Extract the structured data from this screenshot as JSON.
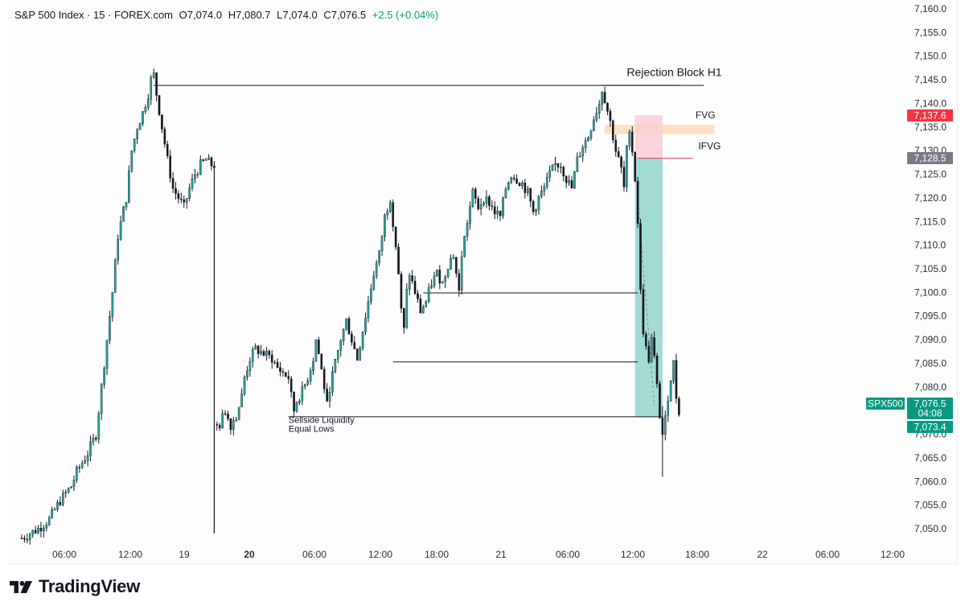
{
  "legend": {
    "symbol": "S&P 500 Index · 15 · FOREX.com",
    "open": "O7,074.0",
    "high": "H7,080.7",
    "low": "L7,074.0",
    "close": "C7,076.5",
    "change": "+2.5 (+0.04%)"
  },
  "branding": {
    "name": "TradingView",
    "icon": "tradingview-logo-icon"
  },
  "colors": {
    "up": "#26a69a",
    "down": "#131722",
    "teal_zone": "#92d4cc",
    "fvg": "#fbdcb8",
    "ifvg": "#f9cdd3",
    "tag_red": "#f23645",
    "tag_gray": "#787b86",
    "tag_green": "#089981"
  },
  "chart_data": {
    "type": "candlestick",
    "y_ticks": [
      "7,160.0",
      "7,155.0",
      "7,150.0",
      "7,145.0",
      "7,140.0",
      "7,135.0",
      "7,130.0",
      "7,125.0",
      "7,120.0",
      "7,115.0",
      "7,110.0",
      "7,105.0",
      "7,100.0",
      "7,095.0",
      "7,090.0",
      "7,085.0",
      "7,080.0",
      "7,075.0",
      "7,070.0",
      "7,065.0",
      "7,060.0",
      "7,055.0",
      "7,050.0"
    ],
    "ylim": [
      7046,
      7161
    ],
    "x_ticks": [
      {
        "label": "06:00",
        "bold": false
      },
      {
        "label": "12:00",
        "bold": false
      },
      {
        "label": "19",
        "bold": false
      },
      {
        "label": "20",
        "bold": true
      },
      {
        "label": "06:00",
        "bold": false
      },
      {
        "label": "12:00",
        "bold": false
      },
      {
        "label": "18:00",
        "bold": false
      },
      {
        "label": "21",
        "bold": false
      },
      {
        "label": "06:00",
        "bold": false
      },
      {
        "label": "12:00",
        "bold": false
      },
      {
        "label": "18:00",
        "bold": false
      },
      {
        "label": "22",
        "bold": false
      },
      {
        "label": "06:00",
        "bold": false
      },
      {
        "label": "12:00",
        "bold": false
      }
    ],
    "price_path": [
      [
        0,
        7048
      ],
      [
        6,
        7050
      ],
      [
        10,
        7052
      ],
      [
        14,
        7056
      ],
      [
        18,
        7059
      ],
      [
        20,
        7062
      ],
      [
        24,
        7066
      ],
      [
        27,
        7070
      ],
      [
        29,
        7080
      ],
      [
        31,
        7090
      ],
      [
        33,
        7100
      ],
      [
        35,
        7112
      ],
      [
        38,
        7120
      ],
      [
        40,
        7130
      ],
      [
        42,
        7135
      ],
      [
        44,
        7138
      ],
      [
        46,
        7142
      ],
      [
        47,
        7145
      ],
      [
        48,
        7146
      ],
      [
        49,
        7142
      ],
      [
        51,
        7135
      ],
      [
        53,
        7128
      ],
      [
        55,
        7122
      ],
      [
        57,
        7120
      ],
      [
        59,
        7118
      ],
      [
        61,
        7122
      ],
      [
        63,
        7125
      ],
      [
        65,
        7127
      ],
      [
        67,
        7128
      ],
      [
        69,
        7127
      ],
      [
        70,
        7070
      ],
      [
        72,
        7072
      ],
      [
        74,
        7075
      ],
      [
        76,
        7072
      ],
      [
        78,
        7074
      ],
      [
        80,
        7078
      ],
      [
        81,
        7082
      ],
      [
        83,
        7086
      ],
      [
        85,
        7088
      ],
      [
        88,
        7087
      ],
      [
        91,
        7086
      ],
      [
        93,
        7084
      ],
      [
        95,
        7083
      ],
      [
        97,
        7082
      ],
      [
        98,
        7078
      ],
      [
        99,
        7075
      ],
      [
        100,
        7077
      ],
      [
        102,
        7079
      ],
      [
        104,
        7082
      ],
      [
        106,
        7086
      ],
      [
        107,
        7090
      ],
      [
        108,
        7087
      ],
      [
        110,
        7080
      ],
      [
        111,
        7076
      ],
      [
        112,
        7080
      ],
      [
        114,
        7085
      ],
      [
        116,
        7090
      ],
      [
        118,
        7094
      ],
      [
        120,
        7090
      ],
      [
        122,
        7086
      ],
      [
        124,
        7092
      ],
      [
        126,
        7098
      ],
      [
        128,
        7104
      ],
      [
        130,
        7108
      ],
      [
        132,
        7116
      ],
      [
        134,
        7120
      ],
      [
        135,
        7115
      ],
      [
        136,
        7110
      ],
      [
        137,
        7104
      ],
      [
        138,
        7096
      ],
      [
        139,
        7092
      ],
      [
        140,
        7100
      ],
      [
        141,
        7104
      ],
      [
        143,
        7100
      ],
      [
        145,
        7096
      ],
      [
        147,
        7098
      ],
      [
        149,
        7102
      ],
      [
        151,
        7104
      ],
      [
        153,
        7102
      ],
      [
        155,
        7106
      ],
      [
        157,
        7108
      ],
      [
        158,
        7104
      ],
      [
        159,
        7100
      ],
      [
        160,
        7108
      ],
      [
        162,
        7115
      ],
      [
        164,
        7121
      ],
      [
        166,
        7118
      ],
      [
        168,
        7120
      ],
      [
        170,
        7119
      ],
      [
        172,
        7117
      ],
      [
        174,
        7116
      ],
      [
        176,
        7122
      ],
      [
        178,
        7125
      ],
      [
        180,
        7124
      ],
      [
        182,
        7123
      ],
      [
        184,
        7121
      ],
      [
        186,
        7117
      ],
      [
        188,
        7120
      ],
      [
        190,
        7122
      ],
      [
        192,
        7125
      ],
      [
        194,
        7127
      ],
      [
        196,
        7127
      ],
      [
        198,
        7124
      ],
      [
        200,
        7122
      ],
      [
        202,
        7128
      ],
      [
        204,
        7131
      ],
      [
        206,
        7133
      ],
      [
        208,
        7137
      ],
      [
        210,
        7140
      ],
      [
        211,
        7143
      ],
      [
        212,
        7141
      ],
      [
        214,
        7136
      ],
      [
        216,
        7130
      ],
      [
        218,
        7126
      ],
      [
        219,
        7122
      ],
      [
        220,
        7130
      ],
      [
        221,
        7135
      ],
      [
        222,
        7130
      ],
      [
        223,
        7124
      ],
      [
        224,
        7115
      ],
      [
        225,
        7100
      ],
      [
        226,
        7092
      ],
      [
        227,
        7088
      ],
      [
        228,
        7086
      ],
      [
        229,
        7090
      ],
      [
        230,
        7086
      ],
      [
        231,
        7080
      ],
      [
        232,
        7074
      ],
      [
        233,
        7070
      ],
      [
        234,
        7073
      ],
      [
        235,
        7078
      ],
      [
        236,
        7082
      ],
      [
        237,
        7085
      ],
      [
        238,
        7078
      ],
      [
        239,
        7075
      ]
    ],
    "lines": [
      {
        "label": "",
        "y": 7143.8,
        "x_from": 48,
        "x_to": 239
      },
      {
        "label": "",
        "y": 7099.9,
        "x_from": 146,
        "x_to": 224
      },
      {
        "label": "",
        "y": 7085.3,
        "x_from": 135,
        "x_to": 224
      },
      {
        "label": "",
        "y": 7073.7,
        "x_from": 97,
        "x_to": 233
      }
    ],
    "zones": [
      {
        "name": "FVG",
        "y_low": 7133.5,
        "y_high": 7135.5,
        "x_from": 212,
        "x_to": 252
      },
      {
        "name": "IFVG",
        "y_low": 7128.5,
        "y_high": 7137.5,
        "x_from": 223,
        "x_to": 233
      },
      {
        "name": "",
        "y_low": 7073.7,
        "y_high": 7128.5,
        "x_from": 223,
        "x_to": 233
      }
    ],
    "annotations": [
      {
        "text": "Rejection Block H1",
        "x": 220,
        "y": 7145.8
      },
      {
        "text": "FVG",
        "x": 245,
        "y": 7136.8
      },
      {
        "text": "IFVG",
        "x": 246,
        "y": 7130.3
      },
      {
        "text": "Sellside Liquidity",
        "x": 97,
        "y": 7072.4
      },
      {
        "text": "Equal Lows",
        "x": 97,
        "y": 7070.5
      }
    ],
    "price_tags": [
      {
        "text": "7,137.6",
        "color": "red"
      },
      {
        "text": "7,128.5",
        "color": "gray"
      },
      {
        "text": "SPX500",
        "color": "green"
      },
      {
        "text": "7,076.5",
        "color": "green"
      },
      {
        "text": "04:08",
        "color": "green"
      },
      {
        "text": "7,073.4",
        "color": "green"
      }
    ]
  }
}
